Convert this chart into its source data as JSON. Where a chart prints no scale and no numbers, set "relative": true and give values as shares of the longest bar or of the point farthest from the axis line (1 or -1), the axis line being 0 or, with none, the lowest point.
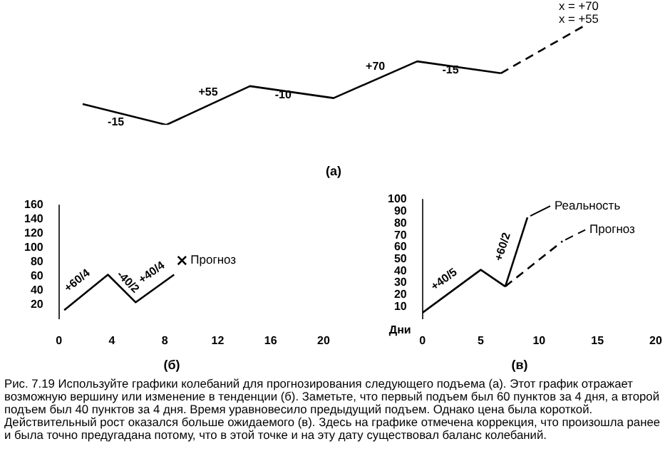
{
  "chart_data": [
    {
      "type": "line",
      "title": "(а)",
      "relative": true,
      "grid": false,
      "marker": "none",
      "categories": [
        null,
        null,
        null,
        null,
        null,
        null,
        null
      ],
      "series": [
        {
          "values": [
            0.21,
            0,
            0.39,
            0.27,
            0.64,
            0.52,
            null
          ],
          "color": "#000000",
          "line_style": "solid"
        },
        {
          "values": [
            null,
            null,
            null,
            null,
            null,
            0.52,
            1
          ],
          "color": "#000000",
          "line_style": "dashed"
        }
      ],
      "annotations": [
        "-15",
        "+55",
        "-10",
        "+70",
        "-15",
        "x = +70",
        "x = +55"
      ]
    },
    {
      "type": "line",
      "title": "(б)",
      "grid": false,
      "marker": "none",
      "xlim": [
        0,
        20
      ],
      "xticks": [
        0,
        4,
        8,
        12,
        16,
        20
      ],
      "ylim": [
        0,
        160
      ],
      "yticks": [
        20,
        40,
        60,
        80,
        100,
        120,
        140,
        160
      ],
      "series": [
        {
          "x": [
            0.4,
            3.7,
            5.8,
            8.7
          ],
          "values": [
            12,
            62,
            23,
            62
          ],
          "color": "#000000",
          "line_style": "solid"
        },
        {
          "type": "scatter",
          "name": "Прогноз",
          "x": [
            9.3
          ],
          "values": [
            82
          ],
          "color": "#000000",
          "marker": "cross"
        }
      ],
      "annotations": [
        {
          "text": "+60/4",
          "x": 1.8,
          "y": 44
        },
        {
          "text": "-40/2",
          "x": 4.75,
          "y": 43
        },
        {
          "text": "+40/4",
          "x": 7.4,
          "y": 55
        }
      ]
    },
    {
      "type": "line",
      "title": "(в)",
      "xlabel": "Дни",
      "grid": false,
      "marker": "none",
      "legend": "right",
      "xlim": [
        0,
        20
      ],
      "xticks": [
        0,
        5,
        10,
        15,
        20
      ],
      "ylim": [
        0,
        100
      ],
      "yticks": [
        10,
        20,
        30,
        40,
        50,
        60,
        70,
        80,
        90,
        100
      ],
      "series": [
        {
          "x": [
            0,
            5,
            7.1
          ],
          "values": [
            5,
            41,
            27
          ],
          "color": "#000000",
          "line_style": "solid"
        },
        {
          "name": "Реальность",
          "x": [
            7.1,
            9
          ],
          "values": [
            27,
            85
          ],
          "color": "#000000",
          "line_style": "solid"
        },
        {
          "name": "Прогноз",
          "x": [
            7.1,
            12
          ],
          "values": [
            27,
            65
          ],
          "color": "#000000",
          "line_style": "dashed"
        }
      ],
      "annotations": [
        {
          "text": "+40/5",
          "x": 2.3,
          "y": 27
        },
        {
          "text": "+60/2",
          "x": 7.6,
          "y": 58
        },
        "Рис. 7.19 Используйте графики колебаний для прогнозирования следующего подъема (а). Этот график отражает возможную вершину или изменение в тенденции (б). Заметьте, что первый подъем был 60 пунктов за 4 дня, а второй подъем был 40 пунктов за 4 дня. Время уравновесило предыдущий подъем. Однако цена была короткой. Действительный рост оказался больше ожидаемого (в). Здесь на графике отмечена коррекция, что произошла ранее и была точно предугадана потому, что в этой точке и на эту дату существовал баланс колебаний."
      ]
    }
  ]
}
